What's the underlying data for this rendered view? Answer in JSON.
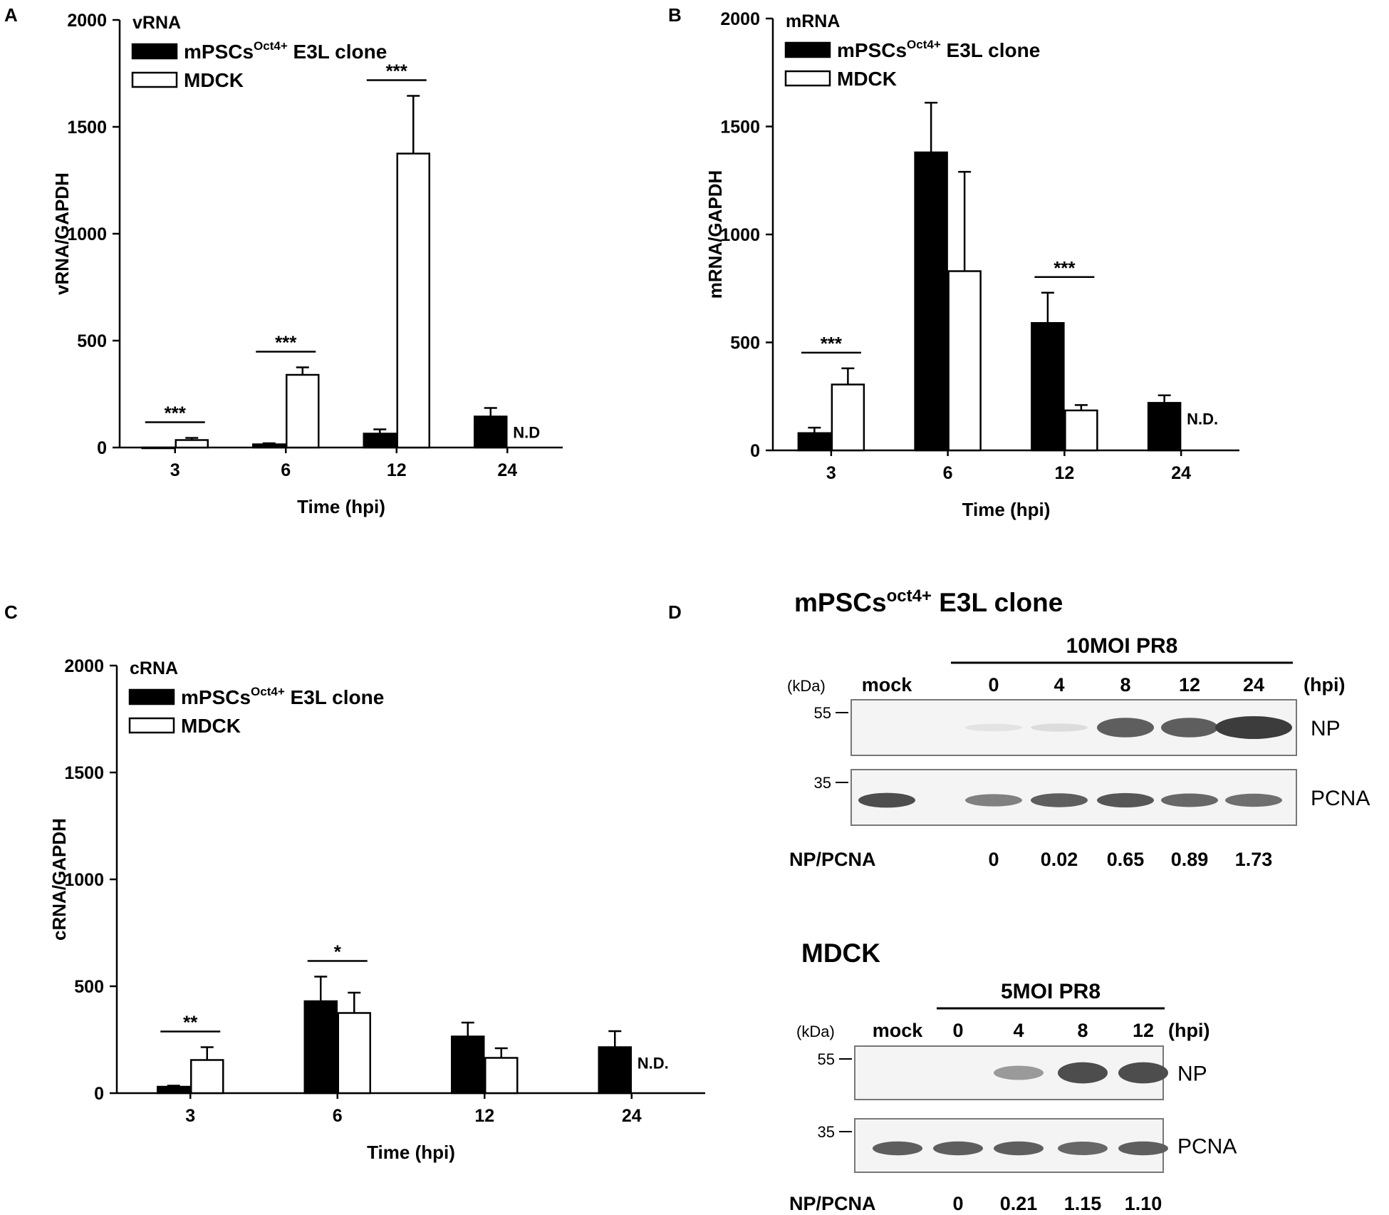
{
  "panels": [
    {
      "letter": "A",
      "chart_data": {
        "type": "bar",
        "inset_label": "vRNA",
        "xlabel": "Time (hpi)",
        "ylabel": "vRNA/GAPDH",
        "categories": [
          "3",
          "6",
          "12",
          "24"
        ],
        "ylim": [
          0,
          2000
        ],
        "yticks": [
          "0",
          "500",
          "1000",
          "1500",
          "2000"
        ],
        "series": [
          {
            "name": "mPSCs",
            "sup": "Oct4+",
            "suffix": " E3L clone",
            "fill": "#000000",
            "values": [
              0,
              15,
              65,
              145
            ],
            "errors": [
              0,
              5,
              20,
              40
            ]
          },
          {
            "name": "MDCK",
            "fill": "#ffffff",
            "values": [
              35,
              340,
              1375,
              null
            ],
            "errors": [
              10,
              35,
              270,
              null
            ]
          }
        ],
        "annotations": [
          {
            "category": "3",
            "text": "***"
          },
          {
            "category": "6",
            "text": "***"
          },
          {
            "category": "12",
            "text": "***"
          },
          {
            "category": "24",
            "text": "N.D",
            "type": "nd"
          }
        ]
      }
    },
    {
      "letter": "B",
      "chart_data": {
        "type": "bar",
        "inset_label": "mRNA",
        "xlabel": "Time (hpi)",
        "ylabel": "mRNA/GAPDH",
        "categories": [
          "3",
          "6",
          "12",
          "24"
        ],
        "ylim": [
          0,
          2000
        ],
        "yticks": [
          "0",
          "500",
          "1000",
          "1500",
          "2000"
        ],
        "series": [
          {
            "name": "mPSCs",
            "sup": "Oct4+",
            "suffix": " E3L clone",
            "fill": "#000000",
            "values": [
              80,
              1380,
              590,
              220
            ],
            "errors": [
              25,
              230,
              140,
              35
            ]
          },
          {
            "name": "MDCK",
            "fill": "#ffffff",
            "values": [
              305,
              830,
              185,
              null
            ],
            "errors": [
              75,
              460,
              25,
              null
            ]
          }
        ],
        "annotations": [
          {
            "category": "3",
            "text": "***"
          },
          {
            "category": "12",
            "text": "***"
          },
          {
            "category": "24",
            "text": "N.D.",
            "type": "nd"
          }
        ]
      }
    },
    {
      "letter": "C",
      "chart_data": {
        "type": "bar",
        "inset_label": "cRNA",
        "xlabel": "Time (hpi)",
        "ylabel": "cRNA/GAPDH",
        "categories": [
          "3",
          "6",
          "12",
          "24"
        ],
        "ylim": [
          0,
          2000
        ],
        "yticks": [
          "0",
          "500",
          "1000",
          "1500",
          "2000"
        ],
        "series": [
          {
            "name": "mPSCs",
            "sup": "Oct4+",
            "suffix": " E3L clone",
            "fill": "#000000",
            "values": [
              30,
              430,
              265,
              215
            ],
            "errors": [
              5,
              115,
              65,
              75
            ]
          },
          {
            "name": "MDCK",
            "fill": "#ffffff",
            "values": [
              155,
              375,
              165,
              null
            ],
            "errors": [
              60,
              95,
              45,
              null
            ]
          }
        ],
        "annotations": [
          {
            "category": "3",
            "text": "**"
          },
          {
            "category": "6",
            "text": "*"
          },
          {
            "category": "24",
            "text": "N.D.",
            "type": "nd"
          }
        ]
      }
    }
  ],
  "blot_panel": {
    "letter": "D",
    "blots": [
      {
        "title_main": "mPSCs",
        "title_sup": "oct4+",
        "title_suffix": " E3L clone",
        "treatment": "10MOI PR8",
        "kda_label": "(kDa)",
        "hpi_label": "(hpi)",
        "lanes": [
          "mock",
          "0",
          "4",
          "8",
          "12",
          "24"
        ],
        "markers": [
          "55",
          "35"
        ],
        "bands": [
          "NP",
          "PCNA"
        ],
        "np_intensity": [
          0,
          0.02,
          0.06,
          0.8,
          0.8,
          1.0
        ],
        "pcna_intensity": [
          0.9,
          0.6,
          0.8,
          0.85,
          0.75,
          0.7
        ],
        "ratio_label": "NP/PCNA",
        "ratios": [
          "0",
          "0.02",
          "0.65",
          "0.89",
          "1.73"
        ]
      },
      {
        "title_main": "MDCK",
        "title_sup": "",
        "title_suffix": "",
        "treatment": "5MOI PR8",
        "kda_label": "(kDa)",
        "hpi_label": "(hpi)",
        "lanes": [
          "mock",
          "0",
          "4",
          "8",
          "12"
        ],
        "markers": [
          "55",
          "35"
        ],
        "bands": [
          "NP",
          "PCNA"
        ],
        "np_intensity": [
          0,
          0,
          0.45,
          0.9,
          0.9
        ],
        "pcna_intensity": [
          0.8,
          0.8,
          0.8,
          0.75,
          0.8
        ],
        "ratio_label": "NP/PCNA",
        "ratios": [
          "0",
          "0.21",
          "1.15",
          "1.10"
        ]
      }
    ]
  }
}
